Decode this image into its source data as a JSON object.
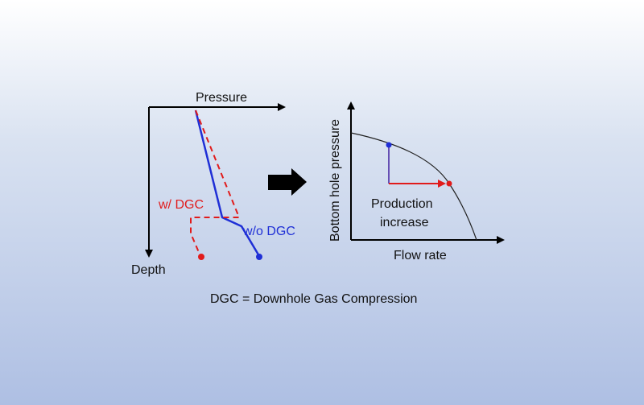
{
  "left_diagram": {
    "x_axis_label": "Pressure",
    "y_axis_label": "Depth",
    "series": [
      {
        "name": "w/ DGC",
        "color": "#e11b1b",
        "style": "dashed"
      },
      {
        "name": "w/o DGC",
        "color": "#1f2fd6",
        "style": "solid"
      }
    ]
  },
  "arrow": {
    "icon": "right-arrow-icon",
    "color": "#000000"
  },
  "right_diagram": {
    "x_axis_label": "Flow rate",
    "y_axis_label": "Bottom hole pressure",
    "annotation_line1": "Production",
    "annotation_line2": "increase",
    "marker_colors": {
      "initial": "#1f2fd6",
      "improved": "#e11b1b"
    }
  },
  "footnote": "DGC = Downhole Gas Compression",
  "colors": {
    "background_top": "#ffffff",
    "background_bottom": "#aebfe3",
    "red": "#e11b1b",
    "blue": "#1f2fd6"
  }
}
